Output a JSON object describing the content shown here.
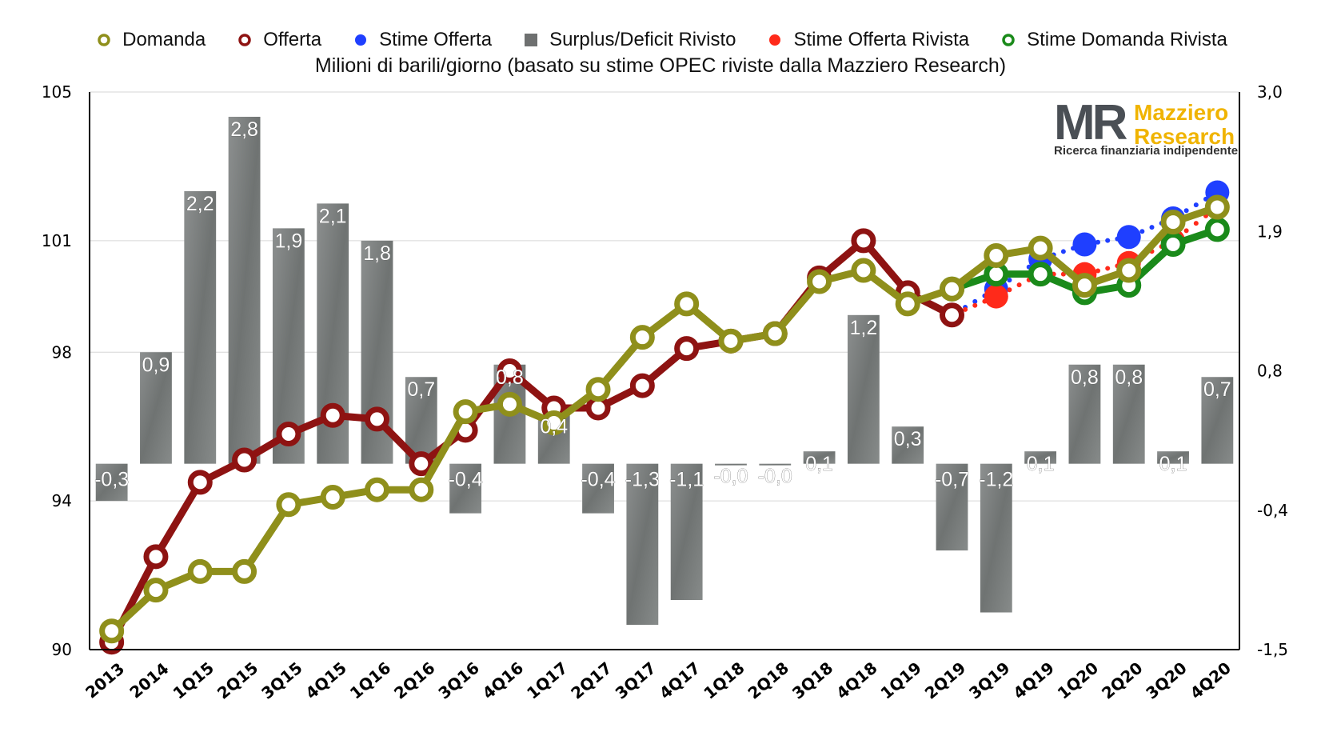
{
  "legend": [
    {
      "label": "Domanda",
      "color": "#8f8f1b",
      "marker": "ring"
    },
    {
      "label": "Offerta",
      "color": "#8e1312",
      "marker": "ring"
    },
    {
      "label": "Stime Offerta",
      "color": "#1f3fff",
      "marker": "dot"
    },
    {
      "label": "Surplus/Deficit Rivisto",
      "color": "#6e7070",
      "marker": "square"
    },
    {
      "label": "Stime Offerta Rivista",
      "color": "#ff2a1a",
      "marker": "dot"
    },
    {
      "label": "Stime Domanda Rivista",
      "color": "#1a8a1a",
      "marker": "ring"
    }
  ],
  "subtitle": "Milioni di barili/giorno (basato su stime OPEC riviste dalla Mazziero Research)",
  "logo": {
    "mark": "MR",
    "name_line1": "Mazziero",
    "name_line2": "Research",
    "tagline": "Ricerca finanziaria indipendente"
  },
  "chart_data": {
    "type": "bar+line",
    "categories": [
      "2013",
      "2014",
      "1Q15",
      "2Q15",
      "3Q15",
      "4Q15",
      "1Q16",
      "2Q16",
      "3Q16",
      "4Q16",
      "1Q17",
      "2Q17",
      "3Q17",
      "4Q17",
      "1Q18",
      "2Q18",
      "3Q18",
      "4Q18",
      "1Q19",
      "2Q19",
      "3Q19",
      "4Q19",
      "1Q20",
      "2Q20",
      "3Q20",
      "4Q20"
    ],
    "y_left": {
      "ticks": [
        "90",
        "94",
        "98",
        "101",
        "105"
      ],
      "min": 90,
      "max": 105
    },
    "y_right": {
      "ticks": [
        "-1,5",
        "-0,4",
        "0,8",
        "1,9",
        "3,0"
      ],
      "min": -1.5,
      "max": 3.0
    },
    "bars": {
      "name": "Surplus/Deficit Rivisto",
      "values": [
        -0.3,
        0.9,
        2.2,
        2.8,
        1.9,
        2.1,
        1.8,
        0.7,
        -0.4,
        0.8,
        0.4,
        -0.4,
        -1.3,
        -1.1,
        -0.0,
        -0.0,
        0.1,
        1.2,
        0.3,
        -0.7,
        -1.2,
        0.1,
        0.8,
        0.8,
        0.1,
        0.7
      ],
      "labels": [
        "-0,3",
        "0,9",
        "2,2",
        "2,8",
        "1,9",
        "2,1",
        "1,8",
        "0,7",
        "-0,4",
        "0,8",
        "0,4",
        "-0,4",
        "-1,3",
        "-1,1",
        "-0,0",
        "-0,0",
        "0,1",
        "1,2",
        "0,3",
        "-0,7",
        "-1,2",
        "0,1",
        "0,8",
        "0,8",
        "0,1",
        "0,7"
      ]
    },
    "series": [
      {
        "name": "Domanda",
        "color": "#8f8f1b",
        "values": [
          90.5,
          91.6,
          92.1,
          92.1,
          93.9,
          94.1,
          94.3,
          94.3,
          96.4,
          96.6,
          96.1,
          97.0,
          98.4,
          99.3,
          98.3,
          98.5,
          99.9,
          100.2,
          99.3,
          99.7,
          100.6,
          100.8,
          99.8,
          100.2,
          101.5,
          101.9
        ]
      },
      {
        "name": "Offerta",
        "color": "#8e1312",
        "values": [
          90.2,
          92.5,
          94.5,
          95.1,
          95.8,
          96.3,
          96.2,
          95.0,
          95.9,
          97.5,
          96.5,
          96.5,
          97.1,
          98.1,
          98.3,
          98.5,
          100.0,
          101.0,
          99.6,
          99.0,
          null,
          null,
          null,
          null,
          null,
          null
        ]
      },
      {
        "name": "Stime Offerta",
        "color": "#1f3fff",
        "values": [
          null,
          null,
          null,
          null,
          null,
          null,
          null,
          null,
          null,
          null,
          null,
          null,
          null,
          null,
          null,
          null,
          null,
          null,
          null,
          99.0,
          99.7,
          100.5,
          100.9,
          101.1,
          101.6,
          102.3
        ]
      },
      {
        "name": "Stime Offerta Rivista",
        "color": "#ff2a1a",
        "values": [
          null,
          null,
          null,
          null,
          null,
          null,
          null,
          null,
          null,
          null,
          null,
          null,
          null,
          null,
          null,
          null,
          null,
          null,
          null,
          99.0,
          99.5,
          100.1,
          100.1,
          100.4,
          101.0,
          101.9
        ]
      },
      {
        "name": "Stime Domanda Rivista",
        "color": "#1a8a1a",
        "values": [
          null,
          null,
          null,
          null,
          null,
          null,
          null,
          null,
          null,
          null,
          null,
          null,
          null,
          null,
          null,
          null,
          null,
          null,
          null,
          99.7,
          100.1,
          100.1,
          99.6,
          99.8,
          100.9,
          101.3
        ]
      }
    ]
  }
}
